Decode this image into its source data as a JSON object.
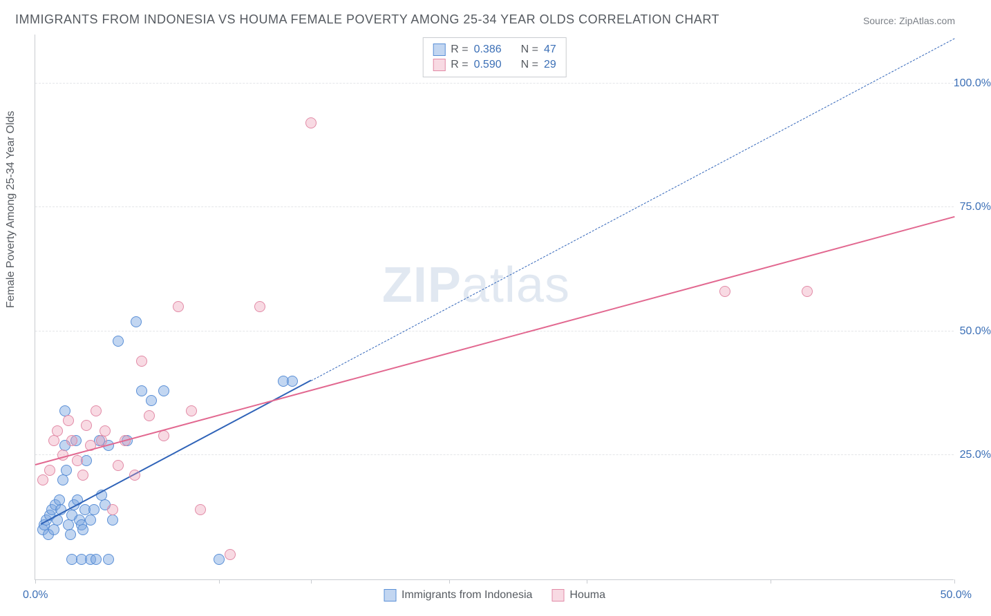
{
  "title": "IMMIGRANTS FROM INDONESIA VS HOUMA FEMALE POVERTY AMONG 25-34 YEAR OLDS CORRELATION CHART",
  "source": "Source: ZipAtlas.com",
  "y_axis_title": "Female Poverty Among 25-34 Year Olds",
  "watermark_a": "ZIP",
  "watermark_b": "atlas",
  "colors": {
    "blue_fill": "rgba(120,165,225,0.45)",
    "blue_stroke": "#5a8fd6",
    "pink_fill": "rgba(235,150,175,0.35)",
    "pink_stroke": "#e28aa6",
    "blue_line": "#2f63b8",
    "pink_line": "#e26890",
    "grid": "#e3e5e8",
    "text_grey": "#555a60",
    "tick_blue": "#3b6fb6"
  },
  "chart": {
    "type": "scatter",
    "xlim": [
      0,
      50
    ],
    "ylim": [
      0,
      110
    ],
    "x_ticks": [
      0,
      10,
      15,
      22.5,
      30,
      40,
      50
    ],
    "x_labels": {
      "min": "0.0%",
      "max": "50.0%"
    },
    "y_grid": [
      25,
      50,
      75,
      100
    ],
    "y_labels": {
      "25": "25.0%",
      "50": "50.0%",
      "75": "75.0%",
      "100": "100.0%"
    },
    "marker_radius": 8,
    "series": [
      {
        "name": "Immigrants from Indonesia",
        "key": "blue",
        "R": "0.386",
        "N": "47",
        "trend": {
          "x1": 0.3,
          "y1": 11,
          "x2": 15,
          "y2": 40,
          "dashed": false,
          "extend": {
            "x2": 50,
            "y2": 109,
            "dashed": true
          }
        },
        "points": [
          [
            0.4,
            10
          ],
          [
            0.5,
            11
          ],
          [
            0.6,
            12
          ],
          [
            0.7,
            9
          ],
          [
            0.8,
            13
          ],
          [
            0.9,
            14
          ],
          [
            1.0,
            10
          ],
          [
            1.1,
            15
          ],
          [
            1.2,
            12
          ],
          [
            1.3,
            16
          ],
          [
            1.4,
            14
          ],
          [
            1.5,
            20
          ],
          [
            1.6,
            27
          ],
          [
            1.7,
            22
          ],
          [
            1.6,
            34
          ],
          [
            1.8,
            11
          ],
          [
            1.9,
            9
          ],
          [
            2.0,
            13
          ],
          [
            2.1,
            15
          ],
          [
            2.2,
            28
          ],
          [
            2.3,
            16
          ],
          [
            2.4,
            12
          ],
          [
            2.5,
            11
          ],
          [
            2.6,
            10
          ],
          [
            2.7,
            14
          ],
          [
            2.8,
            24
          ],
          [
            3.0,
            12
          ],
          [
            3.2,
            14
          ],
          [
            3.5,
            28
          ],
          [
            3.6,
            17
          ],
          [
            3.8,
            15
          ],
          [
            4.0,
            27
          ],
          [
            4.2,
            12
          ],
          [
            4.5,
            48
          ],
          [
            5.0,
            28
          ],
          [
            5.5,
            52
          ],
          [
            5.8,
            38
          ],
          [
            6.3,
            36
          ],
          [
            7.0,
            38
          ],
          [
            2.0,
            4
          ],
          [
            2.5,
            4
          ],
          [
            3.0,
            4
          ],
          [
            3.3,
            4
          ],
          [
            4.0,
            4
          ],
          [
            10.0,
            4
          ],
          [
            13.5,
            40
          ],
          [
            14.0,
            40
          ]
        ]
      },
      {
        "name": "Houma",
        "key": "pink",
        "R": "0.590",
        "N": "29",
        "trend": {
          "x1": 0,
          "y1": 23,
          "x2": 50,
          "y2": 73,
          "dashed": false
        },
        "points": [
          [
            0.4,
            20
          ],
          [
            0.8,
            22
          ],
          [
            1.0,
            28
          ],
          [
            1.2,
            30
          ],
          [
            1.5,
            25
          ],
          [
            1.8,
            32
          ],
          [
            2.0,
            28
          ],
          [
            2.3,
            24
          ],
          [
            2.6,
            21
          ],
          [
            2.8,
            31
          ],
          [
            3.0,
            27
          ],
          [
            3.3,
            34
          ],
          [
            3.6,
            28
          ],
          [
            3.8,
            30
          ],
          [
            4.2,
            14
          ],
          [
            4.5,
            23
          ],
          [
            4.9,
            28
          ],
          [
            5.4,
            21
          ],
          [
            5.8,
            44
          ],
          [
            6.2,
            33
          ],
          [
            7.0,
            29
          ],
          [
            7.8,
            55
          ],
          [
            8.5,
            34
          ],
          [
            10.6,
            5
          ],
          [
            12.2,
            55
          ],
          [
            15.0,
            92
          ],
          [
            37.5,
            58
          ],
          [
            42.0,
            58
          ],
          [
            9.0,
            14
          ]
        ]
      }
    ],
    "legend_bottom": [
      {
        "label": "Immigrants from Indonesia",
        "key": "blue"
      },
      {
        "label": "Houma",
        "key": "pink"
      }
    ]
  }
}
